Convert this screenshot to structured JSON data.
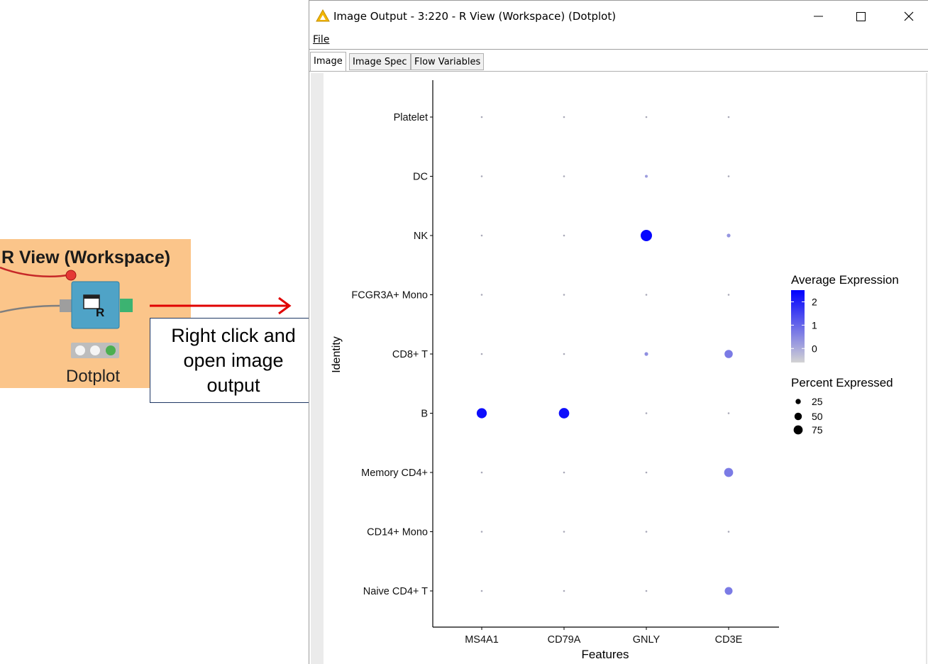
{
  "node": {
    "title": "R View (Workspace)",
    "label": "Dotplot",
    "icon": "r-view-icon"
  },
  "callout": {
    "text": "Right click and open image output"
  },
  "window": {
    "title": "Image Output - 3:220 - R View (Workspace) (Dotplot)",
    "app_icon": "warning-triangle-icon",
    "controls": {
      "minimize": "minimize-icon",
      "maximize": "maximize-icon",
      "close": "close-icon"
    }
  },
  "menu": {
    "file": "File"
  },
  "tabs": [
    {
      "label": "Image",
      "active": true
    },
    {
      "label": "Image Spec",
      "active": false
    },
    {
      "label": "Flow Variables",
      "active": false
    }
  ],
  "colors": {
    "low": "#d3d3d3",
    "high": "#0000ff",
    "node_bg": "#fbc58a",
    "arrow": "#e00000"
  },
  "chart_data": {
    "type": "scatter",
    "subtype": "dotplot",
    "xlabel": "Features",
    "ylabel": "Identity",
    "x_categories": [
      "MS4A1",
      "CD79A",
      "GNLY",
      "CD3E"
    ],
    "y_categories": [
      "Platelet",
      "DC",
      "NK",
      "FCGR3A+ Mono",
      "CD8+ T",
      "B",
      "Memory CD4+",
      "CD14+ Mono",
      "Naive CD4+ T"
    ],
    "points": [
      {
        "x": "MS4A1",
        "y": "Platelet",
        "avg_exp": -0.5,
        "pct": 2
      },
      {
        "x": "CD79A",
        "y": "Platelet",
        "avg_exp": -0.5,
        "pct": 2
      },
      {
        "x": "GNLY",
        "y": "Platelet",
        "avg_exp": -0.4,
        "pct": 2
      },
      {
        "x": "CD3E",
        "y": "Platelet",
        "avg_exp": -0.4,
        "pct": 2
      },
      {
        "x": "MS4A1",
        "y": "DC",
        "avg_exp": -0.5,
        "pct": 2
      },
      {
        "x": "CD79A",
        "y": "DC",
        "avg_exp": -0.5,
        "pct": 2
      },
      {
        "x": "GNLY",
        "y": "DC",
        "avg_exp": 0.2,
        "pct": 6
      },
      {
        "x": "CD3E",
        "y": "DC",
        "avg_exp": -0.3,
        "pct": 2
      },
      {
        "x": "MS4A1",
        "y": "NK",
        "avg_exp": -0.5,
        "pct": 2
      },
      {
        "x": "CD79A",
        "y": "NK",
        "avg_exp": -0.5,
        "pct": 2
      },
      {
        "x": "GNLY",
        "y": "NK",
        "avg_exp": 2.4,
        "pct": 95
      },
      {
        "x": "CD3E",
        "y": "NK",
        "avg_exp": 0.3,
        "pct": 10
      },
      {
        "x": "MS4A1",
        "y": "FCGR3A+ Mono",
        "avg_exp": -0.5,
        "pct": 2
      },
      {
        "x": "CD79A",
        "y": "FCGR3A+ Mono",
        "avg_exp": -0.5,
        "pct": 2
      },
      {
        "x": "GNLY",
        "y": "FCGR3A+ Mono",
        "avg_exp": -0.4,
        "pct": 2
      },
      {
        "x": "CD3E",
        "y": "FCGR3A+ Mono",
        "avg_exp": -0.4,
        "pct": 2
      },
      {
        "x": "MS4A1",
        "y": "CD8+ T",
        "avg_exp": -0.5,
        "pct": 2
      },
      {
        "x": "CD79A",
        "y": "CD8+ T",
        "avg_exp": -0.5,
        "pct": 2
      },
      {
        "x": "GNLY",
        "y": "CD8+ T",
        "avg_exp": 0.4,
        "pct": 10
      },
      {
        "x": "CD3E",
        "y": "CD8+ T",
        "avg_exp": 0.7,
        "pct": 50
      },
      {
        "x": "MS4A1",
        "y": "B",
        "avg_exp": 2.3,
        "pct": 75
      },
      {
        "x": "CD79A",
        "y": "B",
        "avg_exp": 2.3,
        "pct": 80
      },
      {
        "x": "GNLY",
        "y": "B",
        "avg_exp": -0.5,
        "pct": 2
      },
      {
        "x": "CD3E",
        "y": "B",
        "avg_exp": -0.4,
        "pct": 2
      },
      {
        "x": "MS4A1",
        "y": "Memory CD4+",
        "avg_exp": -0.5,
        "pct": 2
      },
      {
        "x": "CD79A",
        "y": "Memory CD4+",
        "avg_exp": -0.5,
        "pct": 2
      },
      {
        "x": "GNLY",
        "y": "Memory CD4+",
        "avg_exp": -0.4,
        "pct": 2
      },
      {
        "x": "CD3E",
        "y": "Memory CD4+",
        "avg_exp": 0.7,
        "pct": 60
      },
      {
        "x": "MS4A1",
        "y": "CD14+ Mono",
        "avg_exp": -0.5,
        "pct": 2
      },
      {
        "x": "CD79A",
        "y": "CD14+ Mono",
        "avg_exp": -0.5,
        "pct": 2
      },
      {
        "x": "GNLY",
        "y": "CD14+ Mono",
        "avg_exp": -0.4,
        "pct": 2
      },
      {
        "x": "CD3E",
        "y": "CD14+ Mono",
        "avg_exp": -0.4,
        "pct": 2
      },
      {
        "x": "MS4A1",
        "y": "Naive CD4+ T",
        "avg_exp": -0.5,
        "pct": 2
      },
      {
        "x": "CD79A",
        "y": "Naive CD4+ T",
        "avg_exp": -0.5,
        "pct": 2
      },
      {
        "x": "GNLY",
        "y": "Naive CD4+ T",
        "avg_exp": -0.4,
        "pct": 2
      },
      {
        "x": "CD3E",
        "y": "Naive CD4+ T",
        "avg_exp": 0.7,
        "pct": 45
      }
    ],
    "legend_color": {
      "title": "Average Expression",
      "ticks": [
        "2",
        "1",
        "0"
      ],
      "tick_values": [
        2,
        1,
        0
      ],
      "range": [
        -0.6,
        2.5
      ]
    },
    "legend_size": {
      "title": "Percent Expressed",
      "labels": [
        "25",
        "50",
        "75"
      ],
      "values": [
        25,
        50,
        75
      ]
    },
    "legend_position": "right",
    "grid": false
  }
}
